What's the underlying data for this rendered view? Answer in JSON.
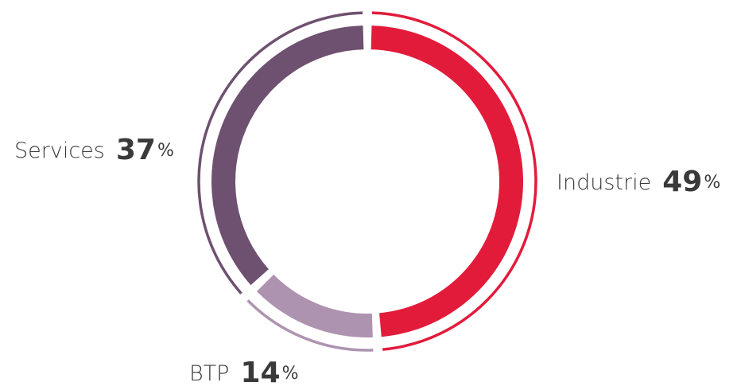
{
  "chart_data": {
    "type": "donut",
    "categories": [
      "Industrie",
      "BTP",
      "Services"
    ],
    "values": [
      49,
      14,
      37
    ],
    "unit": "%",
    "colors": [
      "#e31b3b",
      "#ae93b0",
      "#6e5070"
    ]
  }
}
